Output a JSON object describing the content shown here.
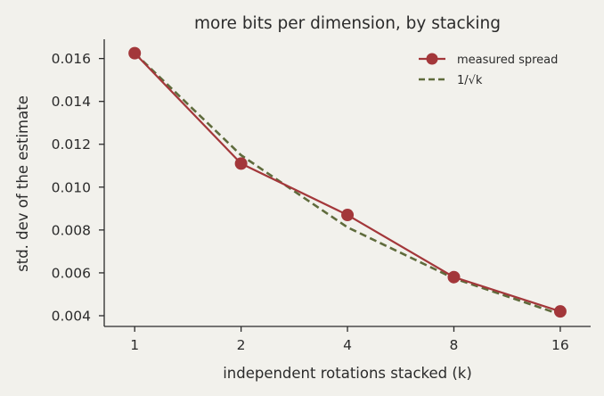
{
  "chart_data": {
    "type": "line",
    "title": "more bits per dimension, by stacking",
    "xlabel": "independent rotations stacked (k)",
    "ylabel": "std. dev of the estimate",
    "x_scale": "log2",
    "x_ticks": [
      "1",
      "2",
      "4",
      "8",
      "16"
    ],
    "y_ticks": [
      "0.004",
      "0.006",
      "0.008",
      "0.010",
      "0.012",
      "0.014",
      "0.016"
    ],
    "ylim": [
      0.0035,
      0.0169
    ],
    "xlim": [
      0.82,
      19.5
    ],
    "grid": false,
    "legend": "top-right",
    "x": [
      1,
      2,
      4,
      8,
      16
    ],
    "series": [
      {
        "name": "measured spread",
        "values": [
          0.01625,
          0.0111,
          0.0087,
          0.0058,
          0.0042
        ],
        "color": "#a3373a",
        "style": "solid-markers"
      },
      {
        "name": "1/√k",
        "values": [
          0.01625,
          0.01149,
          0.008125,
          0.005745,
          0.0040625
        ],
        "color": "#5f6b3c",
        "style": "dashed"
      }
    ]
  }
}
